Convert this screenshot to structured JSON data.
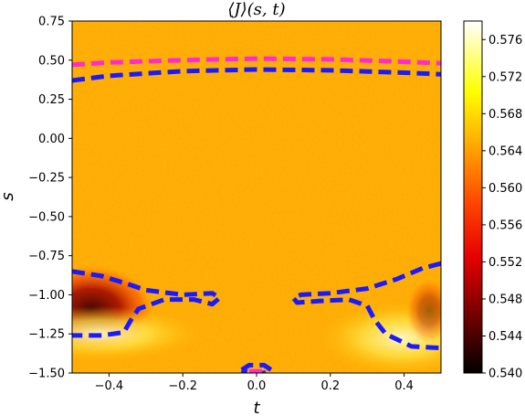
{
  "chart_data": {
    "type": "heatmap",
    "title": "⟨J⟩(s, t)",
    "xlabel": "t",
    "ylabel": "s",
    "xlim": [
      -0.5,
      0.5
    ],
    "ylim": [
      -1.5,
      0.75
    ],
    "x_ticks": [
      "−0.4",
      "−0.2",
      "0.0",
      "0.2",
      "0.4"
    ],
    "x_tick_values": [
      -0.4,
      -0.2,
      0.0,
      0.2,
      0.4
    ],
    "y_ticks": [
      "0.75",
      "0.50",
      "0.25",
      "0.00",
      "−0.25",
      "−0.50",
      "−0.75",
      "−1.00",
      "−1.25",
      "−1.50"
    ],
    "y_tick_values": [
      0.75,
      0.5,
      0.25,
      0.0,
      -0.25,
      -0.5,
      -0.75,
      -1.0,
      -1.25,
      -1.5
    ],
    "colorbar": {
      "colormap": "hot",
      "range": [
        0.54,
        0.578
      ],
      "ticks": [
        "0.540",
        "0.544",
        "0.548",
        "0.552",
        "0.556",
        "0.560",
        "0.564",
        "0.568",
        "0.572",
        "0.576"
      ],
      "tick_values": [
        0.54,
        0.544,
        0.548,
        0.552,
        0.556,
        0.56,
        0.564,
        0.568,
        0.572,
        0.576
      ]
    },
    "background_value": 0.563,
    "regions": [
      {
        "name": "",
        "description_value": 0.545,
        "t_range": [
          -0.5,
          -0.3
        ],
        "s_range": [
          -1.3,
          -0.85
        ]
      },
      {
        "name": "",
        "description_value": 0.572,
        "t_range": [
          -0.5,
          -0.25
        ],
        "s_range": [
          -1.5,
          -1.2
        ]
      },
      {
        "name": "",
        "description_value": 0.572,
        "t_range": [
          0.25,
          0.5
        ],
        "s_range": [
          -1.5,
          -1.15
        ]
      }
    ],
    "contours": [
      {
        "color": "#ff2bd0",
        "style": "dashed",
        "points": [
          [
            -0.5,
            0.47
          ],
          [
            -0.4,
            0.485
          ],
          [
            -0.2,
            0.5
          ],
          [
            0.0,
            0.51
          ],
          [
            0.2,
            0.505
          ],
          [
            0.4,
            0.49
          ],
          [
            0.5,
            0.48
          ]
        ]
      },
      {
        "color": "#1a1aff",
        "style": "dashed",
        "points": [
          [
            -0.5,
            0.37
          ],
          [
            -0.4,
            0.4
          ],
          [
            -0.2,
            0.43
          ],
          [
            0.0,
            0.44
          ],
          [
            0.2,
            0.435
          ],
          [
            0.4,
            0.42
          ],
          [
            0.5,
            0.41
          ]
        ]
      },
      {
        "color": "#1a1aff",
        "style": "dashed",
        "points": [
          [
            -0.5,
            -0.85
          ],
          [
            -0.42,
            -0.88
          ],
          [
            -0.35,
            -0.93
          ],
          [
            -0.3,
            -0.97
          ],
          [
            -0.2,
            -1.0
          ],
          [
            -0.12,
            -0.99
          ],
          [
            -0.1,
            -1.02
          ],
          [
            -0.12,
            -1.06
          ],
          [
            -0.17,
            -1.03
          ],
          [
            -0.25,
            -1.03
          ],
          [
            -0.32,
            -1.09
          ],
          [
            -0.34,
            -1.16
          ],
          [
            -0.36,
            -1.24
          ],
          [
            -0.42,
            -1.26
          ],
          [
            -0.5,
            -1.26
          ]
        ]
      },
      {
        "color": "#1a1aff",
        "style": "dashed",
        "points": [
          [
            0.5,
            -0.8
          ],
          [
            0.45,
            -0.83
          ],
          [
            0.38,
            -0.9
          ],
          [
            0.3,
            -0.96
          ],
          [
            0.2,
            -0.99
          ],
          [
            0.12,
            -1.0
          ],
          [
            0.1,
            -1.02
          ],
          [
            0.11,
            -1.05
          ],
          [
            0.17,
            -1.04
          ],
          [
            0.25,
            -1.03
          ],
          [
            0.3,
            -1.07
          ],
          [
            0.32,
            -1.16
          ],
          [
            0.35,
            -1.25
          ],
          [
            0.42,
            -1.33
          ],
          [
            0.5,
            -1.34
          ]
        ]
      },
      {
        "color": "#1a1aff",
        "style": "dashed",
        "points": [
          [
            -0.04,
            -1.48
          ],
          [
            -0.02,
            -1.45
          ],
          [
            0.02,
            -1.45
          ],
          [
            0.04,
            -1.48
          ],
          [
            0.02,
            -1.5
          ],
          [
            -0.02,
            -1.5
          ],
          [
            -0.04,
            -1.48
          ]
        ]
      },
      {
        "color": "#ff2bd0",
        "style": "dashed",
        "points": [
          [
            -0.02,
            -1.49
          ],
          [
            0.02,
            -1.49
          ]
        ]
      }
    ]
  }
}
